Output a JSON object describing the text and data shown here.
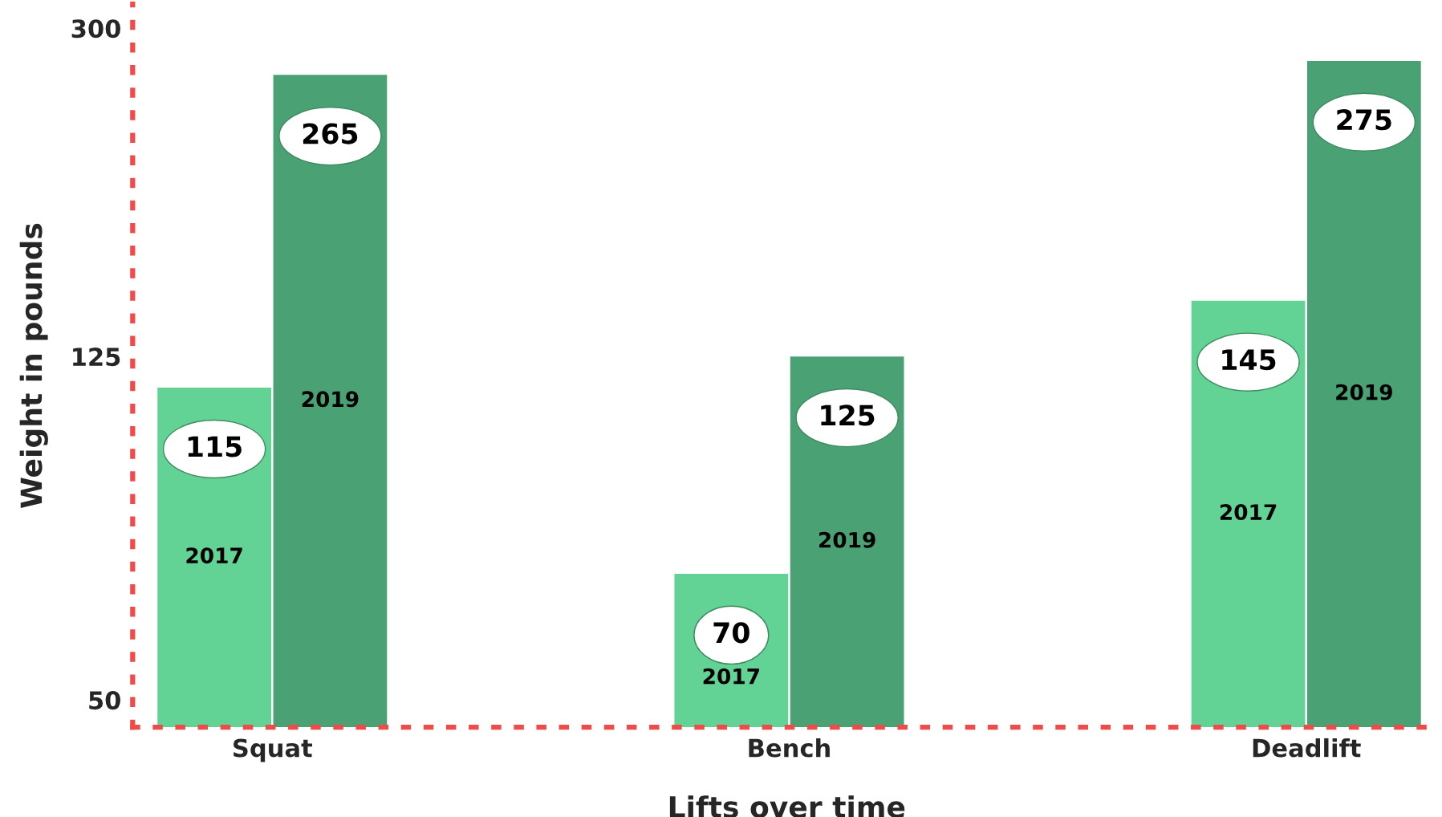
{
  "chart_data": {
    "type": "bar",
    "xlabel": "Lifts over time",
    "ylabel": "Weight in pounds",
    "categories": [
      "Squat",
      "Bench",
      "Deadlift"
    ],
    "series": [
      {
        "name": "2017",
        "color": "#62d295",
        "values": [
          115,
          70,
          145
        ]
      },
      {
        "name": "2019",
        "color": "#4aa173",
        "values": [
          265,
          125,
          275
        ]
      }
    ],
    "log": "y",
    "ylim": [
      46.5,
      320
    ],
    "yticks": [
      50,
      125,
      300
    ],
    "data_labels": true,
    "grid": false,
    "legend": false
  }
}
